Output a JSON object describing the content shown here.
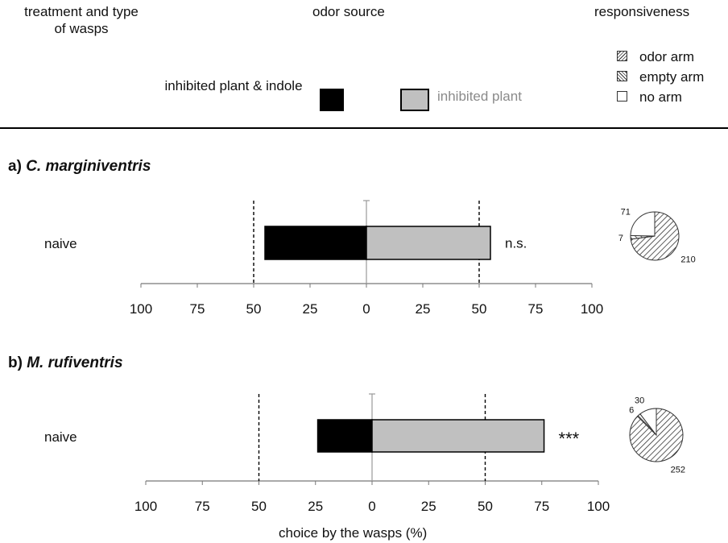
{
  "header": {
    "col1": [
      "treatment and type",
      "of wasps"
    ],
    "col2": "odor source",
    "col3": "responsiveness"
  },
  "legend": {
    "black_label": "inhibited plant & indole",
    "gray_label": "inhibited plant",
    "responsiveness": [
      {
        "label": "odor arm",
        "pattern": "hatch-forward"
      },
      {
        "label": "empty arm",
        "pattern": "hatch-back"
      },
      {
        "label": "no arm",
        "pattern": "blank"
      }
    ]
  },
  "colors": {
    "black_bar": "#000000",
    "gray_bar": "#c0c0c0",
    "gray_text": "#8a8a8a"
  },
  "x_axis_label": "choice by the wasps (%)",
  "chart_data": [
    {
      "type": "bar",
      "panel_letter": "a)",
      "species": "C. marginiventris",
      "categories": [
        "naive"
      ],
      "series": [
        {
          "name": "inhibited plant & indole",
          "values": [
            45
          ]
        },
        {
          "name": "inhibited plant",
          "values": [
            55
          ]
        }
      ],
      "significance": "n.s.",
      "xticks": [
        "100",
        "75",
        "50",
        "25",
        "0",
        "25",
        "50",
        "75",
        "100"
      ],
      "xlim": [
        -100,
        100
      ],
      "reference_lines": [
        -50,
        50
      ],
      "responsiveness_pie": [
        {
          "label": "odor arm",
          "value": 210
        },
        {
          "label": "empty arm",
          "value": 7
        },
        {
          "label": "no arm",
          "value": 71
        }
      ]
    },
    {
      "type": "bar",
      "panel_letter": "b)",
      "species": "M. rufiventris",
      "categories": [
        "naive"
      ],
      "series": [
        {
          "name": "inhibited plant & indole",
          "values": [
            24
          ]
        },
        {
          "name": "inhibited plant",
          "values": [
            76
          ]
        }
      ],
      "significance": "***",
      "xticks": [
        "100",
        "75",
        "50",
        "25",
        "0",
        "25",
        "50",
        "75",
        "100"
      ],
      "xlim": [
        -100,
        100
      ],
      "reference_lines": [
        -50,
        50
      ],
      "responsiveness_pie": [
        {
          "label": "odor arm",
          "value": 252
        },
        {
          "label": "empty arm",
          "value": 6
        },
        {
          "label": "no arm",
          "value": 30
        }
      ]
    }
  ]
}
